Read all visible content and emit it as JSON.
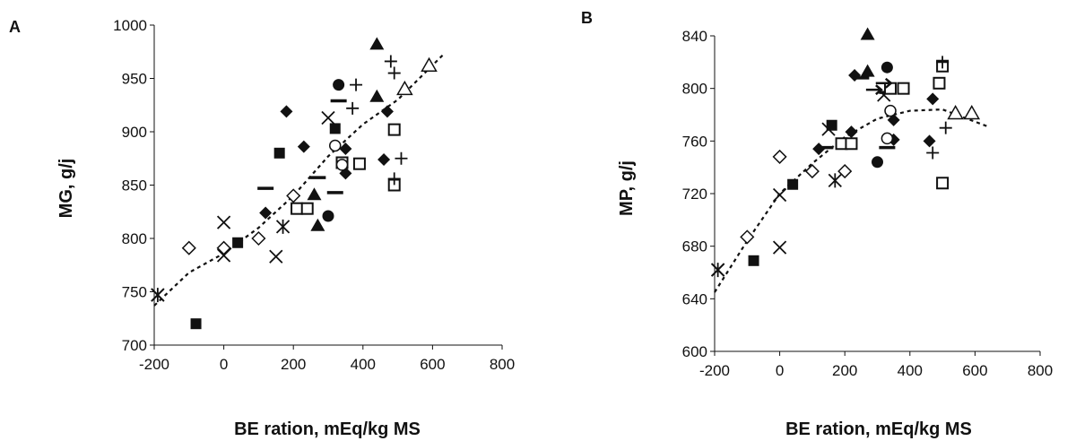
{
  "chart_data": [
    {
      "type": "scatter",
      "panel_letter": "A",
      "xlabel": "BE ration, mEq/kg MS",
      "ylabel": "MG, g/j",
      "xlim": [
        -200,
        800
      ],
      "ylim": [
        700,
        1000
      ],
      "xticks": [
        "-200",
        "0",
        "200",
        "400",
        "600",
        "800"
      ],
      "yticks": [
        "700",
        "750",
        "800",
        "850",
        "900",
        "950",
        "1000"
      ],
      "x_tick_values": [
        -200,
        0,
        200,
        400,
        600,
        800
      ],
      "y_tick_values": [
        700,
        750,
        800,
        850,
        900,
        950,
        1000
      ],
      "grid": false,
      "legend": "none",
      "trend": {
        "style": "dashed",
        "points": [
          [
            -200,
            737
          ],
          [
            -100,
            768
          ],
          [
            0,
            786
          ],
          [
            100,
            810
          ],
          [
            200,
            840
          ],
          [
            300,
            877
          ],
          [
            400,
            907
          ],
          [
            500,
            930
          ],
          [
            630,
            972
          ]
        ]
      },
      "series": [
        {
          "marker": "filled-square",
          "points": [
            [
              -80,
              720
            ],
            [
              40,
              796
            ],
            [
              160,
              880
            ],
            [
              320,
              903
            ]
          ]
        },
        {
          "marker": "open-diamond",
          "points": [
            [
              -100,
              791
            ],
            [
              0,
              791
            ],
            [
              100,
              800
            ],
            [
              200,
              840
            ]
          ]
        },
        {
          "marker": "x",
          "points": [
            [
              -190,
              747
            ],
            [
              0,
              815
            ],
            [
              0,
              784
            ],
            [
              150,
              783
            ],
            [
              300,
              913
            ]
          ]
        },
        {
          "marker": "asterisk",
          "points": [
            [
              -190,
              747
            ],
            [
              170,
              811
            ]
          ]
        },
        {
          "marker": "filled-diamond",
          "points": [
            [
              120,
              824
            ],
            [
              180,
              919
            ],
            [
              230,
              886
            ],
            [
              350,
              884
            ],
            [
              350,
              861
            ],
            [
              460,
              874
            ],
            [
              470,
              919
            ]
          ]
        },
        {
          "marker": "filled-triangle",
          "points": [
            [
              260,
              841
            ],
            [
              270,
              812
            ],
            [
              440,
              982
            ],
            [
              440,
              933
            ]
          ]
        },
        {
          "marker": "dash",
          "points": [
            [
              120,
              847
            ],
            [
              270,
              857
            ],
            [
              320,
              843
            ],
            [
              330,
              929
            ]
          ]
        },
        {
          "marker": "open-square",
          "points": [
            [
              210,
              828
            ],
            [
              240,
              828
            ],
            [
              340,
              871
            ],
            [
              390,
              870
            ],
            [
              490,
              902
            ],
            [
              490,
              850
            ]
          ]
        },
        {
          "marker": "filled-circle",
          "points": [
            [
              300,
              821
            ],
            [
              330,
              944
            ]
          ]
        },
        {
          "marker": "open-circle",
          "points": [
            [
              320,
              887
            ],
            [
              340,
              869
            ]
          ]
        },
        {
          "marker": "plus",
          "points": [
            [
              370,
              922
            ],
            [
              380,
              944
            ],
            [
              480,
              966
            ],
            [
              490,
              955
            ],
            [
              510,
              875
            ],
            [
              490,
              856
            ]
          ]
        },
        {
          "marker": "open-triangle",
          "points": [
            [
              520,
              940
            ],
            [
              590,
              962
            ]
          ]
        }
      ]
    },
    {
      "type": "scatter",
      "panel_letter": "B",
      "xlabel": "BE ration, mEq/kg MS",
      "ylabel": "MP, g/j",
      "xlim": [
        -200,
        800
      ],
      "ylim": [
        600,
        840
      ],
      "xticks": [
        "-200",
        "0",
        "200",
        "400",
        "600",
        "800"
      ],
      "yticks": [
        "600",
        "640",
        "680",
        "720",
        "760",
        "800",
        "840"
      ],
      "x_tick_values": [
        -200,
        0,
        200,
        400,
        600,
        800
      ],
      "y_tick_values": [
        600,
        640,
        680,
        720,
        760,
        800,
        840
      ],
      "grid": false,
      "legend": "none",
      "trend": {
        "style": "dashed",
        "points": [
          [
            -200,
            645
          ],
          [
            -100,
            684
          ],
          [
            0,
            720
          ],
          [
            100,
            743
          ],
          [
            200,
            763
          ],
          [
            300,
            777
          ],
          [
            400,
            783
          ],
          [
            500,
            784
          ],
          [
            640,
            771
          ]
        ]
      },
      "series": [
        {
          "marker": "filled-square",
          "points": [
            [
              -80,
              669
            ],
            [
              40,
              727
            ],
            [
              160,
              772
            ]
          ]
        },
        {
          "marker": "open-diamond",
          "points": [
            [
              -100,
              687
            ],
            [
              0,
              748
            ],
            [
              100,
              737
            ],
            [
              200,
              737
            ]
          ]
        },
        {
          "marker": "x",
          "points": [
            [
              -190,
              662
            ],
            [
              0,
              679
            ],
            [
              0,
              719
            ],
            [
              150,
              769
            ],
            [
              320,
              795
            ]
          ]
        },
        {
          "marker": "asterisk",
          "points": [
            [
              -190,
              662
            ],
            [
              170,
              730
            ]
          ]
        },
        {
          "marker": "filled-diamond",
          "points": [
            [
              120,
              754
            ],
            [
              220,
              767
            ],
            [
              230,
              810
            ],
            [
              350,
              776
            ],
            [
              350,
              761
            ],
            [
              460,
              760
            ],
            [
              470,
              792
            ]
          ]
        },
        {
          "marker": "filled-triangle",
          "points": [
            [
              270,
              841
            ],
            [
              270,
              813
            ]
          ]
        },
        {
          "marker": "dash",
          "points": [
            [
              140,
              755
            ],
            [
              250,
              808
            ],
            [
              330,
              755
            ],
            [
              330,
              797
            ]
          ]
        },
        {
          "marker": "open-square",
          "points": [
            [
              190,
              758
            ],
            [
              220,
              758
            ],
            [
              340,
              800
            ],
            [
              380,
              800
            ],
            [
              490,
              804
            ],
            [
              500,
              728
            ],
            [
              500,
              817
            ]
          ]
        },
        {
          "marker": "filled-circle",
          "points": [
            [
              300,
              744
            ],
            [
              330,
              816
            ]
          ]
        },
        {
          "marker": "open-circle",
          "points": [
            [
              330,
              762
            ],
            [
              340,
              783
            ]
          ]
        },
        {
          "marker": "plus",
          "points": [
            [
              470,
              751
            ],
            [
              500,
              820
            ],
            [
              510,
              770
            ]
          ]
        },
        {
          "marker": "arrow",
          "points": [
            [
              290,
              799
            ],
            [
              320,
              804
            ]
          ]
        },
        {
          "marker": "open-triangle",
          "points": [
            [
              540,
              781
            ],
            [
              590,
              781
            ]
          ]
        }
      ]
    }
  ]
}
